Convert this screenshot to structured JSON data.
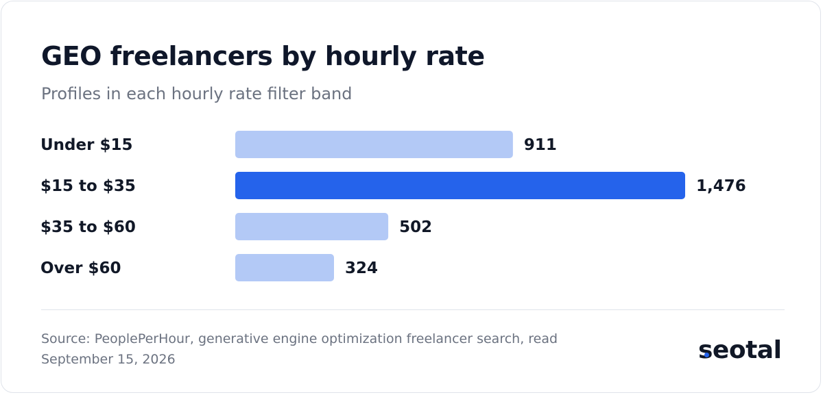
{
  "title": "GEO freelancers by hourly rate",
  "subtitle": "Profiles in each hourly rate filter band",
  "chart_data": {
    "type": "bar",
    "orientation": "horizontal",
    "categories": [
      "Under $15",
      "$15 to $35",
      "$35 to $60",
      "Over $60"
    ],
    "values": [
      911,
      1476,
      502,
      324
    ],
    "value_labels": [
      "911",
      "1,476",
      "502",
      "324"
    ],
    "highlight": "$15 to $35",
    "colors": {
      "bar": "#b3c9f6",
      "highlight": "#2563eb",
      "label": "#111827"
    },
    "grid": false
  },
  "source": "Source: PeoplePerHour, generative engine optimization freelancer search, read September 15, 2026",
  "logo": {
    "text": "seotal",
    "accent": "#2563eb"
  }
}
